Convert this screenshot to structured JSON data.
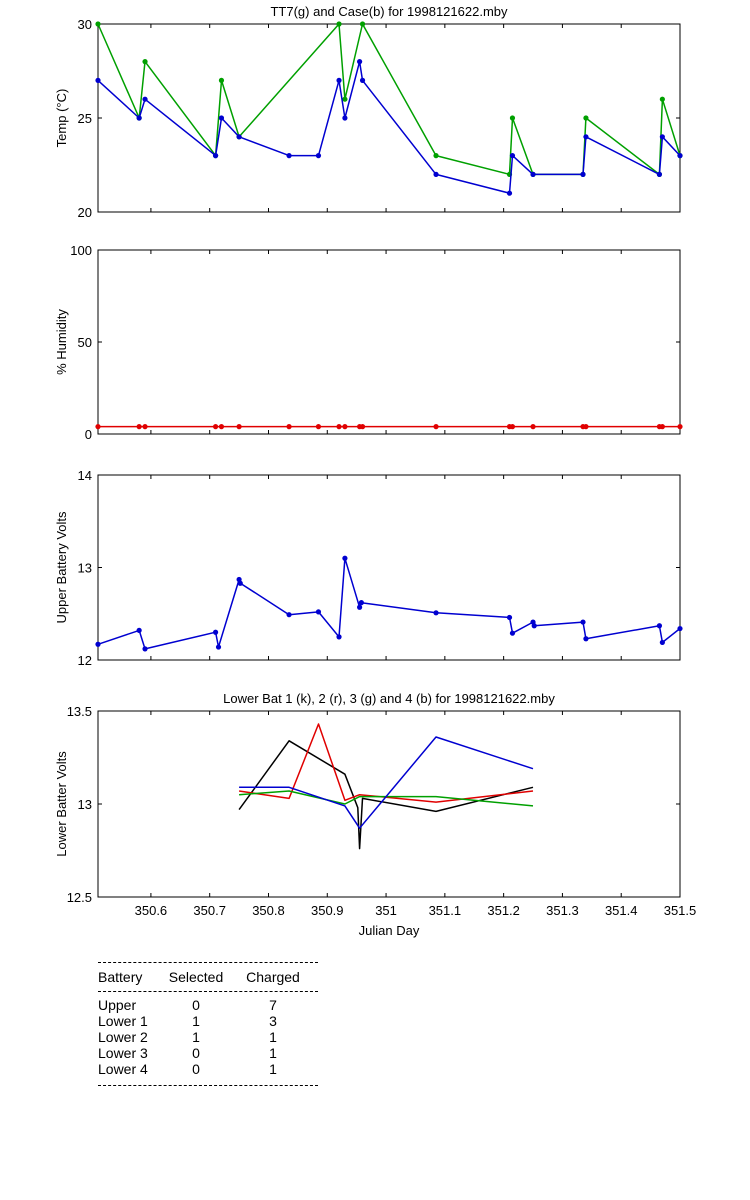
{
  "chart_data": [
    {
      "id": "temp",
      "type": "line",
      "title": "TT7(g) and Case(b) for 1998121622.mby",
      "ylabel": "Temp (°C)",
      "xlim": [
        350.51,
        351.5
      ],
      "ylim": [
        20,
        30
      ],
      "yticks": [
        20,
        25,
        30
      ],
      "series": [
        {
          "name": "TT7",
          "color": "#00a000",
          "markers": true,
          "x": [
            350.51,
            350.58,
            350.59,
            350.71,
            350.72,
            350.75,
            350.92,
            350.93,
            350.96,
            351.085,
            351.21,
            351.215,
            351.25,
            351.335,
            351.34,
            351.465,
            351.47,
            351.5
          ],
          "y": [
            30,
            25,
            28,
            23,
            27,
            24,
            30,
            26,
            30,
            23,
            22,
            25,
            22,
            22,
            25,
            22,
            26,
            23
          ]
        },
        {
          "name": "Case",
          "color": "#0000d0",
          "markers": true,
          "x": [
            350.51,
            350.58,
            350.59,
            350.71,
            350.72,
            350.75,
            350.835,
            350.885,
            350.92,
            350.93,
            350.955,
            350.96,
            351.085,
            351.21,
            351.215,
            351.25,
            351.335,
            351.34,
            351.465,
            351.47,
            351.5
          ],
          "y": [
            27,
            25,
            26,
            23,
            25,
            24,
            23,
            23,
            27,
            25,
            28,
            27,
            22,
            21,
            23,
            22,
            22,
            24,
            22,
            24,
            23
          ]
        }
      ]
    },
    {
      "id": "humidity",
      "type": "line",
      "title": "",
      "ylabel": "% Humidity",
      "xlim": [
        350.51,
        351.5
      ],
      "ylim": [
        0,
        100
      ],
      "yticks": [
        0,
        50,
        100
      ],
      "series": [
        {
          "color": "#e00000",
          "markers": true,
          "x": [
            350.51,
            350.58,
            350.59,
            350.71,
            350.72,
            350.75,
            350.835,
            350.885,
            350.92,
            350.93,
            350.955,
            350.96,
            351.085,
            351.21,
            351.215,
            351.25,
            351.335,
            351.34,
            351.465,
            351.47,
            351.5
          ],
          "y": [
            4,
            4,
            4,
            4,
            4,
            4,
            4,
            4,
            4,
            4,
            4,
            4,
            4,
            4,
            4,
            4,
            4,
            4,
            4,
            4,
            4
          ]
        }
      ]
    },
    {
      "id": "upper",
      "type": "line",
      "title": "",
      "ylabel": "Upper Battery Volts",
      "xlim": [
        350.51,
        351.5
      ],
      "ylim": [
        12,
        14
      ],
      "yticks": [
        12,
        13,
        14
      ],
      "series": [
        {
          "color": "#0000d0",
          "markers": true,
          "x": [
            350.51,
            350.58,
            350.59,
            350.71,
            350.715,
            350.75,
            350.752,
            350.835,
            350.885,
            350.92,
            350.93,
            350.955,
            350.958,
            351.085,
            351.21,
            351.215,
            351.25,
            351.252,
            351.335,
            351.34,
            351.465,
            351.47,
            351.5
          ],
          "y": [
            12.17,
            12.32,
            12.12,
            12.3,
            12.14,
            12.87,
            12.83,
            12.49,
            12.52,
            12.25,
            13.1,
            12.57,
            12.62,
            12.51,
            12.46,
            12.29,
            12.41,
            12.37,
            12.41,
            12.23,
            12.37,
            12.19,
            12.34
          ]
        }
      ]
    },
    {
      "id": "lower",
      "type": "line",
      "title": "Lower Bat 1 (k), 2 (r), 3 (g) and 4 (b) for 1998121622.mby",
      "ylabel": "Lower Batter Volts",
      "xlabel": "Julian Day",
      "xlim": [
        350.51,
        351.5
      ],
      "ylim": [
        12.5,
        13.5
      ],
      "yticks": [
        12.5,
        13,
        13.5
      ],
      "xticks": [
        350.6,
        350.7,
        350.8,
        350.9,
        351,
        351.1,
        351.2,
        351.3,
        351.4,
        351.5
      ],
      "series": [
        {
          "color": "#000000",
          "x": [
            350.75,
            350.835,
            350.93,
            350.952,
            350.955,
            350.96,
            351.085,
            351.25
          ],
          "y": [
            12.97,
            13.34,
            13.16,
            12.98,
            12.76,
            13.03,
            12.96,
            13.09
          ]
        },
        {
          "color": "#e00000",
          "x": [
            350.75,
            350.835,
            350.885,
            350.93,
            350.955,
            351.085,
            351.25
          ],
          "y": [
            13.07,
            13.03,
            13.43,
            13.02,
            13.05,
            13.01,
            13.07
          ]
        },
        {
          "color": "#00a000",
          "x": [
            350.75,
            350.835,
            350.93,
            350.955,
            351.085,
            351.25
          ],
          "y": [
            13.05,
            13.07,
            13.0,
            13.04,
            13.04,
            12.99
          ]
        },
        {
          "color": "#0000d0",
          "x": [
            350.75,
            350.835,
            350.93,
            350.955,
            351.085,
            351.25
          ],
          "y": [
            13.09,
            13.09,
            12.99,
            12.87,
            13.36,
            13.19
          ]
        }
      ]
    }
  ],
  "table": {
    "headers": [
      "Battery",
      "Selected",
      "Charged"
    ],
    "rows": [
      {
        "battery": "Upper",
        "selected": "0",
        "charged": "7"
      },
      {
        "battery": "Lower 1",
        "selected": "1",
        "charged": "3"
      },
      {
        "battery": "Lower 2",
        "selected": "1",
        "charged": "1"
      },
      {
        "battery": "Lower 3",
        "selected": "0",
        "charged": "1"
      },
      {
        "battery": "Lower 4",
        "selected": "0",
        "charged": "1"
      }
    ]
  }
}
